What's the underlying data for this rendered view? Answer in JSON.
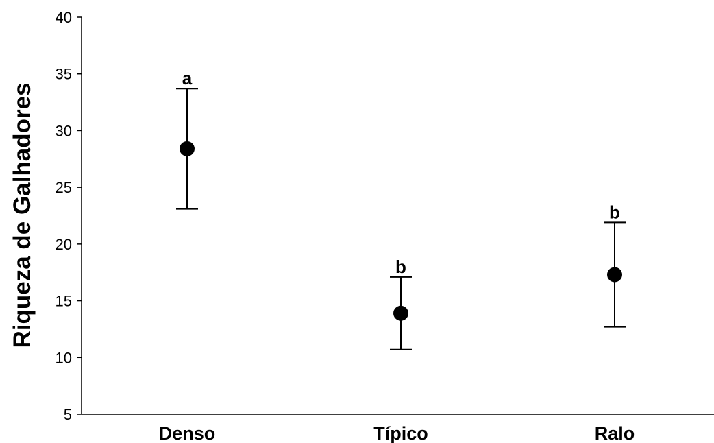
{
  "chart_data": {
    "type": "scatter",
    "ylabel": "Riqueza de Galhadores",
    "xlabel": "",
    "title": "",
    "categories": [
      "Denso",
      "Típico",
      "Ralo"
    ],
    "values": [
      28.4,
      13.9,
      17.3
    ],
    "error_upper": [
      33.7,
      17.1,
      21.9
    ],
    "error_lower": [
      23.1,
      10.7,
      12.7
    ],
    "group_letters": [
      "a",
      "b",
      "b"
    ],
    "ylim": [
      5,
      40
    ],
    "yticks": [
      5,
      10,
      15,
      20,
      25,
      30,
      35,
      40
    ],
    "grid": false,
    "marker_color": "#000000"
  }
}
